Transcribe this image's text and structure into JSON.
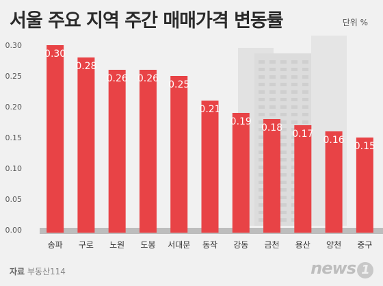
{
  "title": "서울 주요 지역 주간 매매가격 변동률",
  "unit_label": "단위 %",
  "source_label": "자료",
  "source_value": "부동산114",
  "logo_text": "news",
  "logo_mark": "1",
  "colors": {
    "bar": "#e84346",
    "value_label": "#ffffff",
    "axis_text": "#555555",
    "background": "#f1f1f1",
    "baseline": "#bdbdbd"
  },
  "chart_data": {
    "type": "bar",
    "title": "서울 주요 지역 주간 매매가격 변동률",
    "xlabel": "",
    "ylabel": "",
    "categories": [
      "송파",
      "구로",
      "노원",
      "도봉",
      "서대문",
      "동작",
      "강동",
      "금천",
      "용산",
      "양천",
      "중구"
    ],
    "values": [
      0.3,
      0.28,
      0.26,
      0.26,
      0.25,
      0.21,
      0.19,
      0.18,
      0.17,
      0.16,
      0.15
    ],
    "value_labels": [
      "0.30",
      "0.28",
      "0.26",
      "0.26",
      "0.25",
      "0.21",
      "0.19",
      "0.18",
      "0.17",
      "0.16",
      "0.15"
    ],
    "yticks": [
      "0.00",
      "0.05",
      "0.10",
      "0.15",
      "0.20",
      "0.25",
      "0.30"
    ],
    "ylim": [
      0,
      0.3
    ],
    "grid": false,
    "legend": "none"
  }
}
